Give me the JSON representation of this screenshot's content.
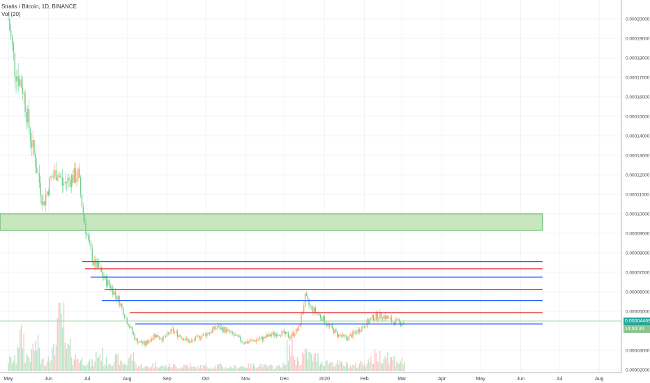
{
  "legend": {
    "symbol_line": "Stratis / Bitcoin, 1D, BINANCE",
    "indicator_line": "Vol (20)"
  },
  "price_axis": {
    "ticks": [
      "0.00020000",
      "0.00019000",
      "0.00018000",
      "0.00017000",
      "0.00016000",
      "0.00015000",
      "0.00014000",
      "0.00013000",
      "0.00012000",
      "0.00011000",
      "0.00010000",
      "0.00009000",
      "0.00008000",
      "0.00007000",
      "0.00006000",
      "0.00005000",
      "0.00003000",
      "0.00002000"
    ]
  },
  "current_price": {
    "value": "0.00004469",
    "countdown": "14:56:30"
  },
  "time_axis": {
    "labels": [
      "May",
      "Jun",
      "Jul",
      "Aug",
      "Sep",
      "Oct",
      "Nov",
      "Dec",
      "2020",
      "Feb",
      "Mar",
      "Apr",
      "May",
      "Jun",
      "Jul",
      "Aug"
    ]
  },
  "colors": {
    "up": "#f7a35c",
    "down": "#6fcf8f",
    "zone_fill": "#c8e6c0",
    "zone_border": "#4caf50",
    "resistance": "#e53935",
    "support": "#2962ff",
    "current_line": "#a5d6a7",
    "price_tag": "#26a69a",
    "countdown_tag": "#8bc48f"
  },
  "chart_data": {
    "type": "line",
    "title": "Stratis / Bitcoin, 1D, BINANCE",
    "y_range": [
      1.7e-05,
      0.000218
    ],
    "x_range": [
      "2019-05-01",
      "2020-08-31"
    ],
    "series": [
      {
        "name": "Stratis / Bitcoin",
        "x": [
          "2019-05-01",
          "2019-05-06",
          "2019-05-12",
          "2019-05-18",
          "2019-05-24",
          "2019-05-28",
          "2019-06-03",
          "2019-06-08",
          "2019-06-12",
          "2019-06-18",
          "2019-06-24",
          "2019-06-28",
          "2019-07-02",
          "2019-07-06",
          "2019-07-10",
          "2019-07-14",
          "2019-07-20",
          "2019-07-26",
          "2019-08-01",
          "2019-08-08",
          "2019-08-15",
          "2019-08-22",
          "2019-08-29",
          "2019-09-05",
          "2019-09-12",
          "2019-09-19",
          "2019-09-26",
          "2019-10-03",
          "2019-10-10",
          "2019-10-17",
          "2019-10-24",
          "2019-10-31",
          "2019-11-07",
          "2019-11-14",
          "2019-11-21",
          "2019-11-28",
          "2019-12-05",
          "2019-12-12",
          "2019-12-17",
          "2019-12-21",
          "2019-12-28",
          "2020-01-04",
          "2020-01-11",
          "2020-01-18",
          "2020-01-25",
          "2020-02-01",
          "2020-02-08",
          "2020-02-15",
          "2020-02-22",
          "2020-02-29",
          "2020-03-04"
        ],
        "close": [
          0.0002,
          0.000175,
          0.000165,
          0.00014,
          0.00012,
          0.000105,
          0.000118,
          0.000122,
          0.000115,
          0.000118,
          0.00012,
          0.0001,
          8.5e-05,
          7.5e-05,
          7.2e-05,
          6.7e-05,
          6.2e-05,
          5.5e-05,
          4.5e-05,
          3.5e-05,
          3.3e-05,
          3.8e-05,
          3.6e-05,
          4e-05,
          3.7e-05,
          3.4e-05,
          3.7e-05,
          3.9e-05,
          4.2e-05,
          4e-05,
          3.7e-05,
          3.4e-05,
          3.5e-05,
          3.6e-05,
          3.8e-05,
          3.9e-05,
          3.7e-05,
          4.1e-05,
          5.7e-05,
          5.2e-05,
          4.8e-05,
          4.3e-05,
          3.8e-05,
          3.6e-05,
          3.9e-05,
          4.3e-05,
          4.7e-05,
          4.8e-05,
          4.5e-05,
          4.4e-05,
          4.5e-05
        ]
      }
    ],
    "levels": {
      "resistance_zone": [
        9.15e-05,
        0.0001
      ],
      "support_lines": [
        7.55e-05,
        6.75e-05,
        5.55e-05,
        4.35e-05
      ],
      "resistance_lines": [
        7.18e-05,
        6.12e-05,
        4.93e-05
      ]
    },
    "volume": {
      "indicator": "Vol (20)",
      "values": [
        20,
        60,
        28,
        45,
        18,
        35,
        90,
        40,
        25,
        20,
        15,
        30,
        18,
        22,
        14,
        26,
        10,
        8,
        12,
        9,
        10,
        8,
        11,
        7,
        9,
        8,
        10,
        7,
        8,
        9,
        10,
        12,
        9,
        8,
        11,
        40,
        20,
        30,
        25,
        18,
        16,
        14,
        12,
        10,
        15,
        20,
        28,
        30,
        22,
        18,
        8
      ]
    }
  }
}
